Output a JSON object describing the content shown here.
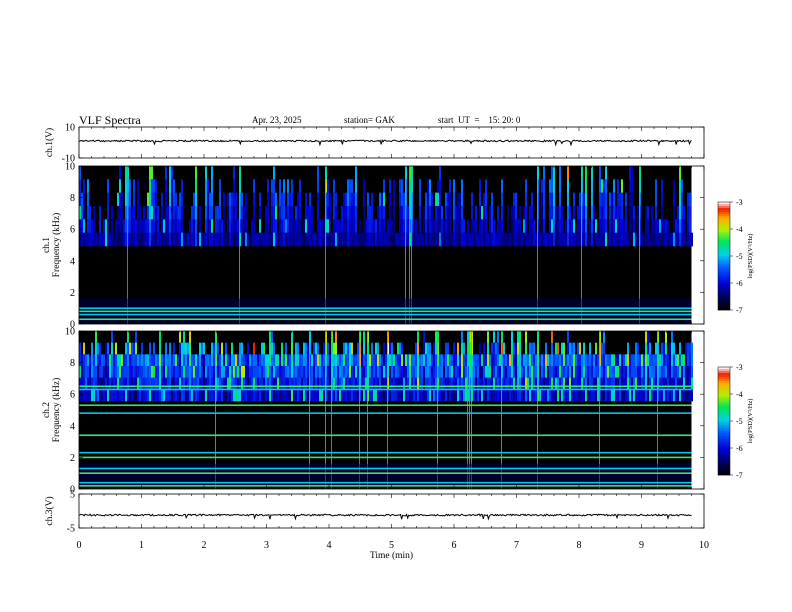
{
  "header": {
    "title": "VLF  Spectra",
    "date": "Apr. 23, 2025",
    "station": "station= GAK",
    "start": "start  UT  =    15: 20: 0"
  },
  "panels": {
    "ch1": {
      "ylabel": "ch.1(V)",
      "ticks": [
        "10",
        "-10"
      ]
    },
    "spec1": {
      "ylabel": "ch.1\nFrequency  (kHz)",
      "ticks": [
        "0",
        "2",
        "4",
        "6",
        "8",
        "10"
      ]
    },
    "spec2": {
      "ylabel": "ch.2\nFrequency  (kHz)",
      "ticks": [
        "0",
        "2",
        "4",
        "6",
        "8",
        "10"
      ]
    },
    "ch3": {
      "ylabel": "ch.3(V)",
      "ticks": [
        "5",
        "-5"
      ]
    }
  },
  "xaxis": {
    "label": "Time  (min)",
    "ticks": [
      "0",
      "1",
      "2",
      "3",
      "4",
      "5",
      "6",
      "7",
      "8",
      "9",
      "10"
    ]
  },
  "colorbar": {
    "label": "log(PSD)(V²/Hz)",
    "ticks": [
      "-3",
      "-4",
      "-5",
      "-6",
      "-7"
    ]
  },
  "chart_data": [
    {
      "type": "line",
      "name": "ch.1(V)",
      "x_unit": "min",
      "xlim": [
        0,
        10
      ],
      "ylim": [
        -10,
        10
      ],
      "x": [
        0,
        9.8
      ],
      "y": [
        1,
        1
      ]
    },
    {
      "type": "heatmap",
      "name": "ch.1 spectrogram",
      "xlabel": "Time  (min)",
      "ylabel": "Frequency  (kHz)",
      "xlim": [
        0,
        10
      ],
      "ylim": [
        0,
        10
      ],
      "data_end_min": 9.8,
      "colorbar": {
        "label": "log(PSD)(V²/Hz)",
        "range": [
          -7,
          -3
        ]
      },
      "horizontal_lines_khz": [
        0.3,
        0.6,
        0.8,
        1.0
      ]
    },
    {
      "type": "heatmap",
      "name": "ch.2 spectrogram",
      "xlabel": "Time  (min)",
      "ylabel": "Frequency  (kHz)",
      "xlim": [
        0,
        10
      ],
      "ylim": [
        0,
        10
      ],
      "data_end_min": 9.8,
      "colorbar": {
        "label": "log(PSD)(V²/Hz)",
        "range": [
          -7,
          -3
        ]
      },
      "horizontal_lines_khz": [
        0.2,
        0.4,
        1.0,
        1.3,
        2.0,
        2.3,
        3.4,
        4.8,
        5.3,
        6.3,
        6.5
      ]
    },
    {
      "type": "line",
      "name": "ch.3(V)",
      "x_unit": "min",
      "xlim": [
        0,
        10
      ],
      "ylim": [
        -5,
        5
      ],
      "x": [
        0,
        9.8
      ],
      "y": [
        -1.2,
        -1.2
      ]
    }
  ]
}
